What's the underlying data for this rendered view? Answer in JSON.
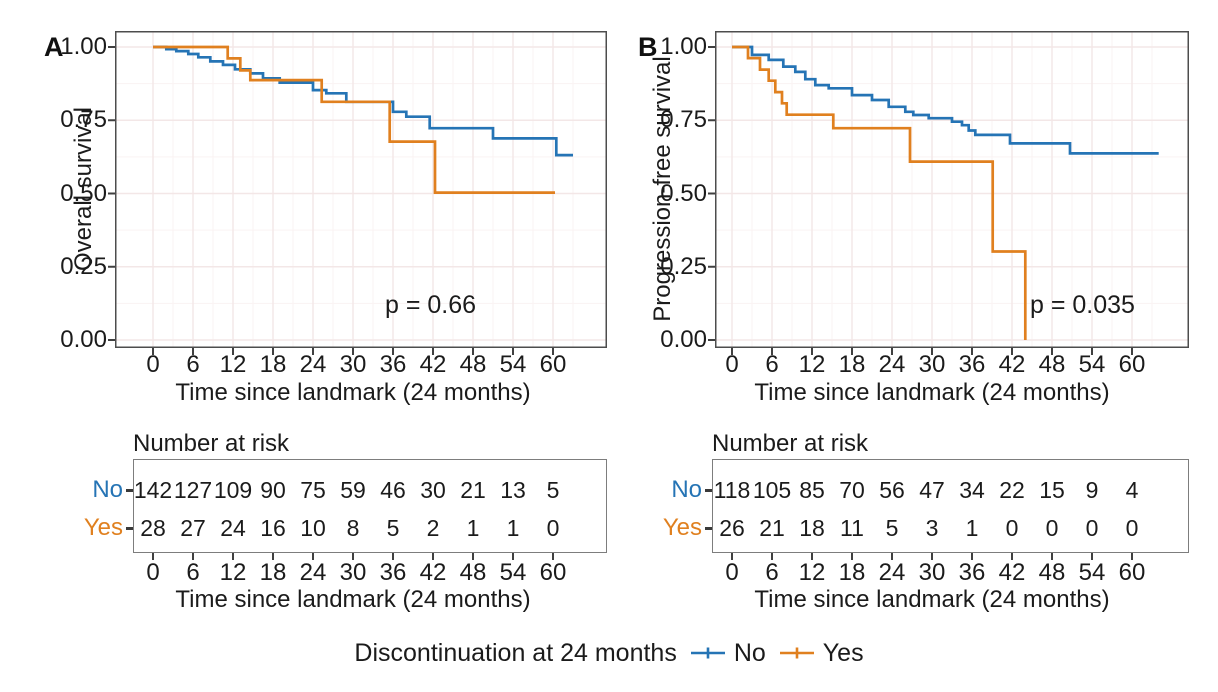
{
  "figure": {
    "legend": {
      "title": "Discontinuation at 24 months",
      "items": [
        {
          "label": "No",
          "color": "#2574B5"
        },
        {
          "label": "Yes",
          "color": "#E0801F"
        }
      ]
    },
    "colors": {
      "no_blue": "#2574B5",
      "yes_orange": "#E0801F",
      "text": "#1b1b1b",
      "panel_border": "#4d4d4d",
      "risk_border": "#7d7d7d",
      "tick": "#404040",
      "grid_major": "#f3e7e7",
      "grid_minor": "#faf3f3"
    }
  },
  "chart_data": [
    {
      "type": "line",
      "subtype": "kaplan-meier-step",
      "panel_label": "A",
      "ylabel": "Overall survival",
      "xlabel": "Time since landmark (24 months)",
      "p_value": "p = 0.66",
      "x_ticks": [
        0,
        6,
        12,
        18,
        24,
        30,
        36,
        42,
        48,
        54,
        60
      ],
      "y_ticks": [
        "1.00",
        "0.75",
        "0.50",
        "0.25",
        "0.00"
      ],
      "y_tick_values": [
        1,
        0.75,
        0.5,
        0.25,
        0
      ],
      "xlim": [
        0,
        63
      ],
      "ylim": [
        0,
        1
      ],
      "grid": true,
      "legend_position": "bottom",
      "series": [
        {
          "name": "No",
          "color": "#2574B5",
          "end_x": 63,
          "points": [
            [
              0,
              1.0
            ],
            [
              2,
              0.993
            ],
            [
              3.5,
              0.986
            ],
            [
              5.3,
              0.976
            ],
            [
              6.8,
              0.965
            ],
            [
              8.6,
              0.951
            ],
            [
              10.5,
              0.939
            ],
            [
              12.3,
              0.924
            ],
            [
              14.6,
              0.91
            ],
            [
              16.5,
              0.893
            ],
            [
              19,
              0.878
            ],
            [
              24,
              0.853
            ],
            [
              26,
              0.842
            ],
            [
              29,
              0.813
            ],
            [
              36,
              0.779
            ],
            [
              38,
              0.762
            ],
            [
              41.5,
              0.723
            ],
            [
              51,
              0.688
            ],
            [
              60.5,
              0.631
            ]
          ]
        },
        {
          "name": "Yes",
          "color": "#E0801F",
          "end_x": 60.3,
          "points": [
            [
              0,
              1.0
            ],
            [
              11.2,
              0.961
            ],
            [
              13.1,
              0.92
            ],
            [
              14.6,
              0.887
            ],
            [
              25.3,
              0.813
            ],
            [
              35.5,
              0.677
            ],
            [
              42.3,
              0.503
            ]
          ]
        }
      ],
      "risk_table": {
        "title": "Number at risk",
        "rows": [
          {
            "label": "No",
            "color": "#2574B5",
            "values": [
              142,
              127,
              109,
              90,
              75,
              59,
              46,
              30,
              21,
              13,
              5
            ]
          },
          {
            "label": "Yes",
            "color": "#E0801F",
            "values": [
              28,
              27,
              24,
              16,
              10,
              8,
              5,
              2,
              1,
              1,
              0
            ]
          }
        ]
      }
    },
    {
      "type": "line",
      "subtype": "kaplan-meier-step",
      "panel_label": "B",
      "ylabel": "Progression-free survival",
      "xlabel": "Time since landmark (24 months)",
      "p_value": "p = 0.035",
      "x_ticks": [
        0,
        6,
        12,
        18,
        24,
        30,
        36,
        42,
        48,
        54,
        60
      ],
      "y_ticks": [
        "1.00",
        "0.75",
        "0.50",
        "0.25",
        "0.00"
      ],
      "y_tick_values": [
        1,
        0.75,
        0.5,
        0.25,
        0
      ],
      "xlim": [
        0,
        64
      ],
      "ylim": [
        0,
        1
      ],
      "grid": true,
      "legend_position": "bottom",
      "series": [
        {
          "name": "No",
          "color": "#2574B5",
          "end_x": 64,
          "points": [
            [
              0,
              1.0
            ],
            [
              3,
              0.973
            ],
            [
              5.5,
              0.956
            ],
            [
              7.7,
              0.933
            ],
            [
              9.5,
              0.915
            ],
            [
              11,
              0.89
            ],
            [
              12.5,
              0.87
            ],
            [
              14.5,
              0.859
            ],
            [
              18,
              0.836
            ],
            [
              21,
              0.819
            ],
            [
              23.5,
              0.796
            ],
            [
              26,
              0.779
            ],
            [
              27.2,
              0.768
            ],
            [
              29.5,
              0.757
            ],
            [
              33,
              0.745
            ],
            [
              34.5,
              0.733
            ],
            [
              35.5,
              0.715
            ],
            [
              36.5,
              0.7
            ],
            [
              41.7,
              0.671
            ],
            [
              50.7,
              0.637
            ]
          ]
        },
        {
          "name": "Yes",
          "color": "#E0801F",
          "end_x": 44,
          "points": [
            [
              0,
              1.0
            ],
            [
              2.4,
              0.962
            ],
            [
              4.2,
              0.923
            ],
            [
              5.5,
              0.885
            ],
            [
              6.5,
              0.846
            ],
            [
              7.5,
              0.808
            ],
            [
              8.2,
              0.769
            ],
            [
              15.2,
              0.723
            ],
            [
              26.7,
              0.609
            ],
            [
              39.1,
              0.302
            ],
            [
              44,
              0.0
            ]
          ]
        }
      ],
      "risk_table": {
        "title": "Number at risk",
        "rows": [
          {
            "label": "No",
            "color": "#2574B5",
            "values": [
              118,
              105,
              85,
              70,
              56,
              47,
              34,
              22,
              15,
              9,
              4
            ]
          },
          {
            "label": "Yes",
            "color": "#E0801F",
            "values": [
              26,
              21,
              18,
              11,
              5,
              3,
              1,
              0,
              0,
              0,
              0
            ]
          }
        ]
      }
    }
  ]
}
